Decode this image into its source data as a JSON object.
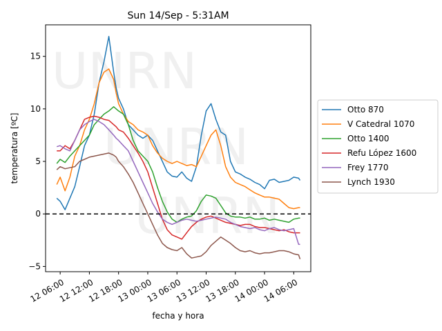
{
  "chart_data": {
    "type": "line",
    "title": "Sun 14/Sep - 5:31AM",
    "xlabel": "fecha y hora",
    "ylabel": "temperatura [ºC]",
    "xlim": [
      3.0,
      57.5
    ],
    "ylim": [
      -5.5,
      18.0
    ],
    "xticks": [
      {
        "x": 6,
        "label": "12 06:00"
      },
      {
        "x": 12,
        "label": "12 12:00"
      },
      {
        "x": 18,
        "label": "12 18:00"
      },
      {
        "x": 24,
        "label": "13 00:00"
      },
      {
        "x": 30,
        "label": "13 06:00"
      },
      {
        "x": 36,
        "label": "13 12:00"
      },
      {
        "x": 42,
        "label": "13 18:00"
      },
      {
        "x": 48,
        "label": "14 00:00"
      },
      {
        "x": 54,
        "label": "14 06:00"
      }
    ],
    "yticks": [
      {
        "y": -5,
        "label": "−5"
      },
      {
        "y": 0,
        "label": "0"
      },
      {
        "y": 5,
        "label": "5"
      },
      {
        "y": 10,
        "label": "10"
      },
      {
        "y": 15,
        "label": "15"
      }
    ],
    "hline": {
      "y": 0,
      "style": "dashed",
      "color": "#000000"
    },
    "watermark": "UNRN",
    "legend_position": "center-right-outside",
    "series": [
      {
        "name": "Otto 870",
        "color": "#1f77b4",
        "x": [
          5.3,
          6,
          7,
          8,
          9,
          10,
          11,
          12,
          13,
          14,
          15,
          16,
          17,
          17.5,
          18,
          19,
          20,
          21,
          22,
          23,
          24,
          25,
          26,
          27,
          28,
          29,
          30,
          31,
          32,
          33,
          34,
          35,
          36,
          37,
          38,
          39,
          40,
          41,
          42,
          43,
          44,
          45,
          46,
          47,
          48,
          49,
          50,
          51,
          52,
          53,
          54,
          55,
          55.3
        ],
        "y": [
          1.5,
          1.2,
          0.4,
          1.5,
          2.6,
          4.5,
          6.5,
          7.5,
          9.5,
          12.5,
          14.5,
          16.9,
          13.5,
          12.0,
          11.0,
          10.0,
          8.5,
          8.0,
          7.5,
          7.2,
          7.5,
          7.0,
          6.0,
          5.0,
          4.0,
          3.6,
          3.5,
          4.0,
          3.4,
          3.1,
          4.5,
          7.5,
          9.8,
          10.5,
          9.0,
          7.8,
          7.5,
          5.0,
          4.0,
          3.8,
          3.5,
          3.3,
          3.0,
          2.8,
          2.4,
          3.2,
          3.3,
          3.0,
          3.1,
          3.2,
          3.5,
          3.4,
          3.2
        ]
      },
      {
        "name": "V Catedral 1070",
        "color": "#ff7f0e",
        "x": [
          5.3,
          6,
          7,
          8,
          9,
          10,
          11,
          12,
          13,
          14,
          15,
          16,
          17,
          17.5,
          18,
          19,
          20,
          21,
          22,
          23,
          24,
          25,
          26,
          27,
          28,
          29,
          30,
          31,
          32,
          33,
          34,
          35,
          36,
          37,
          38,
          39,
          40,
          41,
          42,
          43,
          44,
          45,
          46,
          47,
          48,
          49,
          50,
          51,
          52,
          53,
          54,
          55,
          55.3
        ],
        "y": [
          2.8,
          3.5,
          2.2,
          3.5,
          5.5,
          6.5,
          8.0,
          9.0,
          10.5,
          12.5,
          13.5,
          13.8,
          12.8,
          11.5,
          10.5,
          9.5,
          8.8,
          8.5,
          8.0,
          7.8,
          7.5,
          6.5,
          5.8,
          5.3,
          5.0,
          4.8,
          5.0,
          4.8,
          4.6,
          4.7,
          4.5,
          5.5,
          6.5,
          7.5,
          8.0,
          6.5,
          4.5,
          3.5,
          3.0,
          2.8,
          2.6,
          2.3,
          2.0,
          1.8,
          1.6,
          1.6,
          1.5,
          1.4,
          1.0,
          0.6,
          0.5,
          0.6,
          0.6
        ]
      },
      {
        "name": "Otto 1400",
        "color": "#2ca02c",
        "x": [
          5.3,
          6,
          7,
          8,
          9,
          10,
          11,
          12,
          13,
          14,
          15,
          16,
          17,
          17.5,
          18,
          19,
          20,
          21,
          22,
          23,
          24,
          25,
          26,
          27,
          28,
          29,
          30,
          31,
          32,
          33,
          34,
          35,
          36,
          37,
          38,
          39,
          40,
          41,
          42,
          43,
          44,
          45,
          46,
          47,
          48,
          49,
          50,
          51,
          52,
          53,
          54,
          55,
          55.3
        ],
        "y": [
          4.8,
          5.2,
          4.9,
          5.5,
          6.0,
          6.5,
          7.0,
          7.5,
          8.5,
          9.0,
          9.5,
          9.8,
          10.2,
          10.0,
          9.8,
          9.5,
          8.5,
          7.0,
          6.0,
          5.5,
          5.0,
          4.0,
          2.5,
          1.2,
          0.2,
          -0.5,
          -0.8,
          -0.5,
          -0.3,
          -0.2,
          0.3,
          1.2,
          1.8,
          1.7,
          1.5,
          0.8,
          0.1,
          -0.2,
          -0.3,
          -0.3,
          -0.4,
          -0.3,
          -0.5,
          -0.5,
          -0.4,
          -0.6,
          -0.5,
          -0.6,
          -0.7,
          -0.8,
          -0.5,
          -0.4,
          -0.4
        ]
      },
      {
        "name": "Refu López 1600",
        "color": "#d62728",
        "x": [
          5.3,
          6,
          7,
          8,
          9,
          10,
          11,
          12,
          13,
          14,
          15,
          16,
          17,
          17.5,
          18,
          19,
          20,
          21,
          22,
          23,
          24,
          25,
          26,
          27,
          28,
          29,
          30,
          31,
          32,
          33,
          34,
          35,
          36,
          37,
          38,
          39,
          40,
          41,
          42,
          43,
          44,
          45,
          46,
          47,
          48,
          49,
          50,
          51,
          52,
          53,
          54,
          55,
          55.3
        ],
        "y": [
          6.0,
          6.0,
          6.5,
          6.2,
          7.0,
          8.0,
          9.0,
          9.2,
          9.3,
          9.2,
          9.0,
          8.9,
          8.5,
          8.3,
          8.0,
          7.8,
          7.2,
          6.5,
          5.8,
          5.0,
          4.0,
          2.5,
          1.0,
          -0.5,
          -1.5,
          -2.0,
          -2.2,
          -2.4,
          -1.8,
          -1.2,
          -0.8,
          -0.5,
          -0.3,
          -0.2,
          -0.4,
          -0.6,
          -0.8,
          -0.9,
          -1.0,
          -1.1,
          -1.0,
          -1.0,
          -1.2,
          -1.3,
          -1.3,
          -1.4,
          -1.5,
          -1.6,
          -1.5,
          -1.7,
          -1.8,
          -1.8,
          -1.8
        ]
      },
      {
        "name": "Frey 1770",
        "color": "#9467bd",
        "x": [
          5.3,
          6,
          7,
          8,
          9,
          10,
          11,
          12,
          13,
          14,
          15,
          16,
          17,
          17.5,
          18,
          19,
          20,
          21,
          22,
          23,
          24,
          25,
          26,
          27,
          28,
          29,
          30,
          31,
          32,
          33,
          34,
          35,
          36,
          37,
          38,
          39,
          40,
          41,
          42,
          43,
          44,
          45,
          46,
          47,
          48,
          49,
          50,
          51,
          52,
          53,
          54,
          55,
          55.3
        ],
        "y": [
          6.4,
          6.5,
          6.2,
          6.0,
          7.0,
          8.0,
          8.5,
          8.8,
          9.0,
          8.8,
          8.5,
          8.0,
          7.5,
          7.2,
          7.0,
          6.5,
          6.0,
          5.0,
          4.0,
          3.0,
          2.0,
          1.0,
          0.2,
          -0.5,
          -0.8,
          -1.0,
          -0.8,
          -0.6,
          -0.5,
          -0.6,
          -0.7,
          -0.6,
          -0.5,
          -0.4,
          -0.3,
          -0.4,
          -0.5,
          -0.8,
          -1.0,
          -1.2,
          -1.3,
          -1.4,
          -1.3,
          -1.5,
          -1.6,
          -1.4,
          -1.3,
          -1.5,
          -1.6,
          -1.5,
          -1.4,
          -2.9,
          -2.9
        ]
      },
      {
        "name": "Lynch 1930",
        "color": "#8c564b",
        "x": [
          5.3,
          6,
          7,
          8,
          9,
          10,
          11,
          12,
          13,
          14,
          15,
          16,
          17,
          17.5,
          18,
          19,
          20,
          21,
          22,
          23,
          24,
          25,
          26,
          27,
          28,
          29,
          30,
          31,
          32,
          33,
          34,
          35,
          36,
          37,
          38,
          39,
          40,
          41,
          42,
          43,
          44,
          45,
          46,
          47,
          48,
          49,
          50,
          51,
          52,
          53,
          54,
          55,
          55.3
        ],
        "y": [
          4.2,
          4.5,
          4.3,
          4.4,
          4.5,
          5.0,
          5.2,
          5.4,
          5.5,
          5.6,
          5.7,
          5.8,
          5.6,
          5.4,
          5.0,
          4.5,
          3.8,
          3.0,
          2.0,
          1.0,
          0.0,
          -1.0,
          -2.0,
          -2.8,
          -3.2,
          -3.4,
          -3.5,
          -3.2,
          -3.8,
          -4.2,
          -4.1,
          -4.0,
          -3.6,
          -3.0,
          -2.6,
          -2.2,
          -2.5,
          -2.8,
          -3.2,
          -3.5,
          -3.6,
          -3.5,
          -3.7,
          -3.8,
          -3.7,
          -3.7,
          -3.6,
          -3.5,
          -3.5,
          -3.6,
          -3.8,
          -3.9,
          -4.3
        ]
      }
    ]
  }
}
